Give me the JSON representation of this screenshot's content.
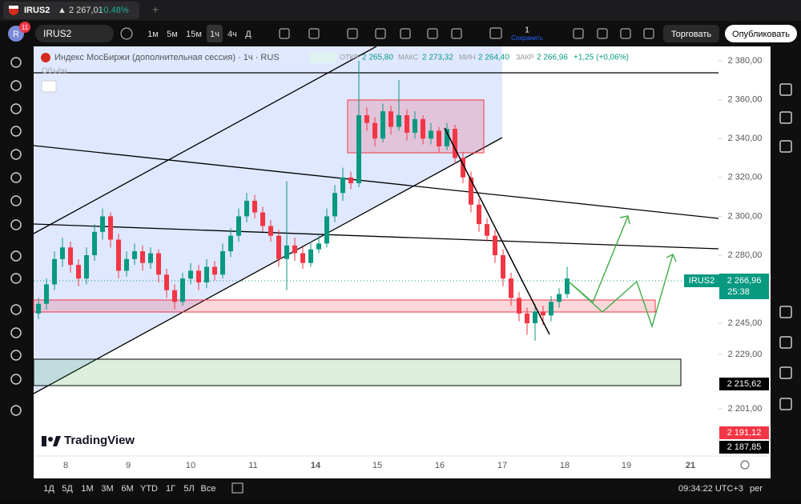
{
  "browser_tab": {
    "symbol": "IRUS2",
    "change_price": "▲ 2 267,01",
    "change_pct": "+0.48%"
  },
  "toolbar": {
    "avatar": "R",
    "notifications": "11",
    "symbol": "IRUS2",
    "intervals": [
      "1м",
      "5м",
      "15м",
      "1ч",
      "4ч",
      "Д"
    ],
    "layout_count": "1",
    "save": "Сохранить",
    "trade": "Торговать",
    "publish": "Опубликовать"
  },
  "legend": {
    "title": "Индекс МосБиржи (дополнительная сессия) · 1ч · RUS",
    "open_label": "ОТКР",
    "open": "2 265,80",
    "high_label": "МАКС",
    "high": "2 273,32",
    "low_label": "МИН",
    "low": "2 264,40",
    "close_label": "ЗАКР",
    "close": "2 266,96",
    "change": "+1,25 (+0,06%)",
    "volume": "Объём"
  },
  "chart_data": {
    "type": "candlestick",
    "up_color": "#089981",
    "down_color": "#f23645",
    "candles": [
      [
        2250,
        2258,
        2247,
        2255
      ],
      [
        2255,
        2268,
        2252,
        2265
      ],
      [
        2265,
        2282,
        2262,
        2278
      ],
      [
        2278,
        2289,
        2274,
        2284
      ],
      [
        2284,
        2287,
        2271,
        2275
      ],
      [
        2275,
        2278,
        2264,
        2268
      ],
      [
        2268,
        2284,
        2265,
        2280
      ],
      [
        2280,
        2296,
        2277,
        2292
      ],
      [
        2292,
        2304,
        2288,
        2300
      ],
      [
        2300,
        2302,
        2284,
        2288
      ],
      [
        2288,
        2291,
        2268,
        2272
      ],
      [
        2272,
        2282,
        2269,
        2278
      ],
      [
        2278,
        2286,
        2275,
        2282
      ],
      [
        2282,
        2285,
        2272,
        2276
      ],
      [
        2276,
        2284,
        2273,
        2281
      ],
      [
        2281,
        2283,
        2266,
        2270
      ],
      [
        2270,
        2273,
        2258,
        2262
      ],
      [
        2262,
        2265,
        2252,
        2256
      ],
      [
        2256,
        2271,
        2254,
        2268
      ],
      [
        2268,
        2276,
        2265,
        2272
      ],
      [
        2272,
        2275,
        2262,
        2266
      ],
      [
        2266,
        2278,
        2263,
        2274
      ],
      [
        2274,
        2277,
        2267,
        2270
      ],
      [
        2270,
        2286,
        2268,
        2282
      ],
      [
        2282,
        2294,
        2279,
        2290
      ],
      [
        2290,
        2304,
        2287,
        2300
      ],
      [
        2300,
        2312,
        2297,
        2308
      ],
      [
        2308,
        2311,
        2299,
        2302
      ],
      [
        2302,
        2305,
        2292,
        2295
      ],
      [
        2295,
        2298,
        2287,
        2290
      ],
      [
        2290,
        2293,
        2274,
        2278
      ],
      [
        2278,
        2318,
        2262,
        2285
      ],
      [
        2285,
        2289,
        2277,
        2281
      ],
      [
        2281,
        2284,
        2273,
        2276
      ],
      [
        2276,
        2287,
        2274,
        2283
      ],
      [
        2283,
        2290,
        2281,
        2286
      ],
      [
        2286,
        2304,
        2284,
        2300
      ],
      [
        2300,
        2316,
        2297,
        2312
      ],
      [
        2312,
        2325,
        2308,
        2320
      ],
      [
        2320,
        2323,
        2314,
        2317
      ],
      [
        2317,
        2380,
        2315,
        2352
      ],
      [
        2352,
        2356,
        2344,
        2348
      ],
      [
        2348,
        2351,
        2336,
        2340
      ],
      [
        2340,
        2358,
        2338,
        2354
      ],
      [
        2354,
        2357,
        2342,
        2346
      ],
      [
        2346,
        2370,
        2344,
        2352
      ],
      [
        2352,
        2355,
        2339,
        2343
      ],
      [
        2343,
        2354,
        2340,
        2350
      ],
      [
        2350,
        2352,
        2337,
        2340
      ],
      [
        2340,
        2348,
        2337,
        2344
      ],
      [
        2344,
        2346,
        2333,
        2336
      ],
      [
        2336,
        2348,
        2334,
        2345
      ],
      [
        2345,
        2347,
        2327,
        2330
      ],
      [
        2330,
        2333,
        2317,
        2320
      ],
      [
        2320,
        2323,
        2302,
        2306
      ],
      [
        2306,
        2309,
        2292,
        2296
      ],
      [
        2296,
        2299,
        2287,
        2290
      ],
      [
        2290,
        2293,
        2276,
        2280
      ],
      [
        2280,
        2283,
        2264,
        2268
      ],
      [
        2268,
        2271,
        2254,
        2258
      ],
      [
        2258,
        2261,
        2246,
        2250
      ],
      [
        2250,
        2253,
        2239,
        2245
      ],
      [
        2245,
        2255,
        2236,
        2251
      ],
      [
        2251,
        2254,
        2244,
        2249
      ],
      [
        2249,
        2259,
        2246,
        2256
      ],
      [
        2256,
        2263,
        2253,
        2260
      ],
      [
        2260,
        2274,
        2258,
        2268
      ]
    ],
    "ylim": [
      2176.7,
      2387.4
    ],
    "yticks": [
      {
        "value": 2380,
        "label": "2 380,00"
      },
      {
        "value": 2360,
        "label": "2 360,00"
      },
      {
        "value": 2340,
        "label": "2 340,00"
      },
      {
        "value": 2320,
        "label": "2 320,00"
      },
      {
        "value": 2300,
        "label": "2 300,00"
      },
      {
        "value": 2280,
        "label": "2 280,00"
      },
      {
        "value": 2245,
        "label": "2 245,00"
      },
      {
        "value": 2229,
        "label": "2 229,00"
      },
      {
        "value": 2201,
        "label": "2 201,00"
      }
    ],
    "x_labels": [
      "8",
      "9",
      "10",
      "11",
      "14",
      "15",
      "16",
      "17",
      "18",
      "19",
      "21"
    ]
  },
  "price_badges": {
    "symbol": "IRUS2",
    "last": "2 266,96",
    "countdown": "25:38",
    "level1": "2 215,62",
    "level2": "2 191,12",
    "level3": "2 187,85"
  },
  "watermark": "TradingView",
  "bottom_bar": {
    "ranges": [
      "1Д",
      "5Д",
      "1М",
      "3М",
      "6М",
      "YTD",
      "1Г",
      "5Л",
      "Все"
    ],
    "clock": "09:34:22 UTC+3",
    "session": "рег"
  }
}
